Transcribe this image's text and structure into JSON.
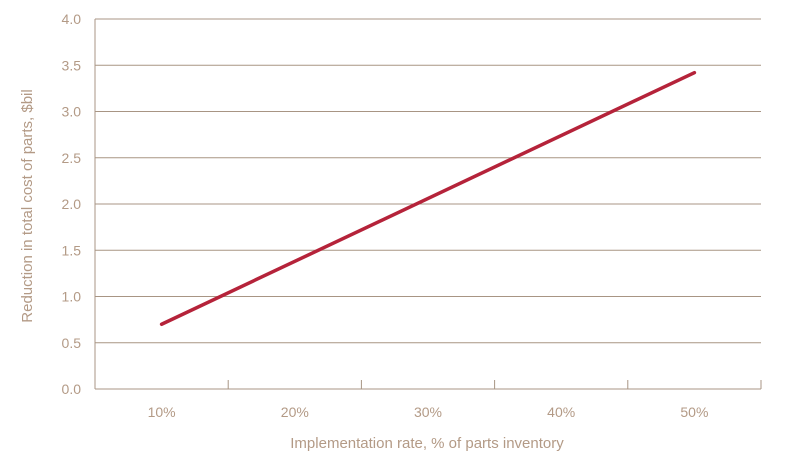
{
  "chart_data": {
    "type": "line",
    "title": "",
    "xlabel": "Implementation rate, % of parts inventory",
    "ylabel": "Reduction in total cost of parts, $bil",
    "categories": [
      "10%",
      "20%",
      "30%",
      "40%",
      "50%"
    ],
    "x": [
      10,
      50
    ],
    "series": [
      {
        "values": [
          0.7,
          3.42
        ]
      }
    ],
    "ylim": [
      0,
      4.0
    ],
    "yticks": [
      "0.0",
      "0.5",
      "1.0",
      "1.5",
      "2.0",
      "2.5",
      "3.0",
      "3.5",
      "4.0"
    ],
    "grid": true,
    "legend": "none"
  },
  "colors": {
    "line": "#b5233a",
    "grid": "#a89584",
    "text": "#b39a86"
  }
}
